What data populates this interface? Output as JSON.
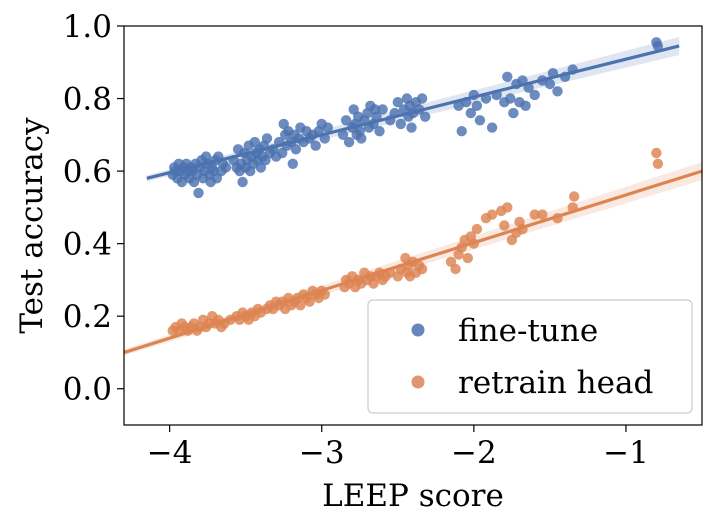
{
  "chart_data": {
    "type": "scatter",
    "xlabel": "LEEP score",
    "ylabel": "Test accuracy",
    "xlim": [
      -4.3,
      -0.5
    ],
    "ylim": [
      -0.1,
      1.0
    ],
    "xticks": [
      -4,
      -3,
      -2,
      -1
    ],
    "xtick_labels": [
      "−4",
      "−3",
      "−2",
      "−1"
    ],
    "yticks": [
      0.0,
      0.2,
      0.4,
      0.6,
      0.8,
      1.0
    ],
    "ytick_labels": [
      "0.0",
      "0.2",
      "0.4",
      "0.6",
      "0.8",
      "1.0"
    ],
    "legend_position": "lower-right",
    "series": [
      {
        "name": "fine-tune",
        "color": "#4c72b0",
        "regression": {
          "x_start": -4.15,
          "x_end": -0.65,
          "y_start": 0.58,
          "y_end": 0.945
        },
        "points": [
          [
            -3.98,
            0.59
          ],
          [
            -3.97,
            0.61
          ],
          [
            -3.96,
            0.6
          ],
          [
            -3.95,
            0.58
          ],
          [
            -3.94,
            0.62
          ],
          [
            -3.93,
            0.6
          ],
          [
            -3.92,
            0.57
          ],
          [
            -3.91,
            0.61
          ],
          [
            -3.9,
            0.59
          ],
          [
            -3.89,
            0.62
          ],
          [
            -3.88,
            0.6
          ],
          [
            -3.87,
            0.58
          ],
          [
            -3.86,
            0.61
          ],
          [
            -3.85,
            0.6
          ],
          [
            -3.84,
            0.57
          ],
          [
            -3.83,
            0.62
          ],
          [
            -3.82,
            0.59
          ],
          [
            -3.81,
            0.54
          ],
          [
            -3.8,
            0.61
          ],
          [
            -3.79,
            0.63
          ],
          [
            -3.78,
            0.58
          ],
          [
            -3.77,
            0.6
          ],
          [
            -3.76,
            0.64
          ],
          [
            -3.75,
            0.62
          ],
          [
            -3.74,
            0.59
          ],
          [
            -3.73,
            0.57
          ],
          [
            -3.72,
            0.61
          ],
          [
            -3.71,
            0.6
          ],
          [
            -3.7,
            0.63
          ],
          [
            -3.69,
            0.58
          ],
          [
            -3.68,
            0.64
          ],
          [
            -3.66,
            0.6
          ],
          [
            -3.65,
            0.62
          ],
          [
            -3.63,
            0.61
          ],
          [
            -3.58,
            0.63
          ],
          [
            -3.56,
            0.61
          ],
          [
            -3.55,
            0.66
          ],
          [
            -3.54,
            0.6
          ],
          [
            -3.53,
            0.62
          ],
          [
            -3.52,
            0.57
          ],
          [
            -3.51,
            0.65
          ],
          [
            -3.5,
            0.61
          ],
          [
            -3.49,
            0.63
          ],
          [
            -3.48,
            0.67
          ],
          [
            -3.47,
            0.6
          ],
          [
            -3.46,
            0.64
          ],
          [
            -3.45,
            0.62
          ],
          [
            -3.44,
            0.68
          ],
          [
            -3.43,
            0.65
          ],
          [
            -3.42,
            0.63
          ],
          [
            -3.41,
            0.66
          ],
          [
            -3.4,
            0.61
          ],
          [
            -3.39,
            0.64
          ],
          [
            -3.38,
            0.67
          ],
          [
            -3.37,
            0.63
          ],
          [
            -3.36,
            0.69
          ],
          [
            -3.34,
            0.65
          ],
          [
            -3.32,
            0.66
          ],
          [
            -3.3,
            0.64
          ],
          [
            -3.28,
            0.68
          ],
          [
            -3.26,
            0.65
          ],
          [
            -3.25,
            0.73
          ],
          [
            -3.24,
            0.7
          ],
          [
            -3.23,
            0.67
          ],
          [
            -3.22,
            0.71
          ],
          [
            -3.2,
            0.68
          ],
          [
            -3.19,
            0.62
          ],
          [
            -3.18,
            0.7
          ],
          [
            -3.17,
            0.66
          ],
          [
            -3.15,
            0.69
          ],
          [
            -3.14,
            0.72
          ],
          [
            -3.12,
            0.68
          ],
          [
            -3.1,
            0.71
          ],
          [
            -3.08,
            0.69
          ],
          [
            -3.06,
            0.7
          ],
          [
            -3.04,
            0.67
          ],
          [
            -3.02,
            0.71
          ],
          [
            -3.0,
            0.73
          ],
          [
            -2.98,
            0.69
          ],
          [
            -2.96,
            0.72
          ],
          [
            -2.86,
            0.7
          ],
          [
            -2.84,
            0.74
          ],
          [
            -2.82,
            0.68
          ],
          [
            -2.8,
            0.72
          ],
          [
            -2.79,
            0.77
          ],
          [
            -2.78,
            0.73
          ],
          [
            -2.77,
            0.7
          ],
          [
            -2.76,
            0.75
          ],
          [
            -2.75,
            0.71
          ],
          [
            -2.74,
            0.69
          ],
          [
            -2.72,
            0.74
          ],
          [
            -2.7,
            0.76
          ],
          [
            -2.69,
            0.72
          ],
          [
            -2.68,
            0.78
          ],
          [
            -2.66,
            0.73
          ],
          [
            -2.65,
            0.77
          ],
          [
            -2.64,
            0.75
          ],
          [
            -2.62,
            0.71
          ],
          [
            -2.6,
            0.77
          ],
          [
            -2.55,
            0.74
          ],
          [
            -2.52,
            0.76
          ],
          [
            -2.5,
            0.79
          ],
          [
            -2.48,
            0.73
          ],
          [
            -2.46,
            0.77
          ],
          [
            -2.44,
            0.8
          ],
          [
            -2.43,
            0.75
          ],
          [
            -2.42,
            0.78
          ],
          [
            -2.41,
            0.72
          ],
          [
            -2.4,
            0.76
          ],
          [
            -2.38,
            0.79
          ],
          [
            -2.36,
            0.77
          ],
          [
            -2.34,
            0.8
          ],
          [
            -2.32,
            0.75
          ],
          [
            -2.1,
            0.78
          ],
          [
            -2.08,
            0.71
          ],
          [
            -2.05,
            0.79
          ],
          [
            -2.02,
            0.76
          ],
          [
            -2.0,
            0.81
          ],
          [
            -1.98,
            0.78
          ],
          [
            -1.96,
            0.74
          ],
          [
            -1.92,
            0.8
          ],
          [
            -1.88,
            0.72
          ],
          [
            -1.85,
            0.81
          ],
          [
            -1.8,
            0.79
          ],
          [
            -1.78,
            0.86
          ],
          [
            -1.76,
            0.8
          ],
          [
            -1.74,
            0.76
          ],
          [
            -1.72,
            0.84
          ],
          [
            -1.7,
            0.79
          ],
          [
            -1.68,
            0.85
          ],
          [
            -1.66,
            0.78
          ],
          [
            -1.64,
            0.83
          ],
          [
            -1.6,
            0.81
          ],
          [
            -1.55,
            0.85
          ],
          [
            -1.5,
            0.84
          ],
          [
            -1.48,
            0.87
          ],
          [
            -1.45,
            0.82
          ],
          [
            -1.4,
            0.86
          ],
          [
            -1.35,
            0.88
          ],
          [
            -0.8,
            0.955
          ],
          [
            -0.79,
            0.945
          ]
        ]
      },
      {
        "name": "retrain head",
        "color": "#dd8452",
        "regression": {
          "x_start": -4.3,
          "x_end": -0.5,
          "y_start": 0.1,
          "y_end": 0.6
        },
        "points": [
          [
            -3.98,
            0.16
          ],
          [
            -3.96,
            0.17
          ],
          [
            -3.94,
            0.16
          ],
          [
            -3.92,
            0.18
          ],
          [
            -3.9,
            0.17
          ],
          [
            -3.88,
            0.16
          ],
          [
            -3.86,
            0.17
          ],
          [
            -3.84,
            0.18
          ],
          [
            -3.82,
            0.16
          ],
          [
            -3.8,
            0.17
          ],
          [
            -3.78,
            0.19
          ],
          [
            -3.76,
            0.17
          ],
          [
            -3.74,
            0.18
          ],
          [
            -3.72,
            0.2
          ],
          [
            -3.7,
            0.18
          ],
          [
            -3.68,
            0.19
          ],
          [
            -3.66,
            0.17
          ],
          [
            -3.64,
            0.18
          ],
          [
            -3.6,
            0.19
          ],
          [
            -3.56,
            0.2
          ],
          [
            -3.54,
            0.19
          ],
          [
            -3.52,
            0.21
          ],
          [
            -3.5,
            0.2
          ],
          [
            -3.48,
            0.19
          ],
          [
            -3.46,
            0.21
          ],
          [
            -3.44,
            0.2
          ],
          [
            -3.42,
            0.22
          ],
          [
            -3.4,
            0.21
          ],
          [
            -3.36,
            0.22
          ],
          [
            -3.34,
            0.23
          ],
          [
            -3.32,
            0.22
          ],
          [
            -3.3,
            0.24
          ],
          [
            -3.28,
            0.23
          ],
          [
            -3.26,
            0.24
          ],
          [
            -3.24,
            0.22
          ],
          [
            -3.22,
            0.25
          ],
          [
            -3.2,
            0.23
          ],
          [
            -3.18,
            0.24
          ],
          [
            -3.16,
            0.25
          ],
          [
            -3.14,
            0.23
          ],
          [
            -3.12,
            0.26
          ],
          [
            -3.1,
            0.25
          ],
          [
            -3.08,
            0.24
          ],
          [
            -3.06,
            0.27
          ],
          [
            -3.04,
            0.26
          ],
          [
            -3.02,
            0.25
          ],
          [
            -3.0,
            0.27
          ],
          [
            -2.98,
            0.26
          ],
          [
            -2.85,
            0.28
          ],
          [
            -2.84,
            0.3
          ],
          [
            -2.82,
            0.29
          ],
          [
            -2.8,
            0.31
          ],
          [
            -2.78,
            0.28
          ],
          [
            -2.76,
            0.3
          ],
          [
            -2.74,
            0.29
          ],
          [
            -2.72,
            0.32
          ],
          [
            -2.7,
            0.3
          ],
          [
            -2.68,
            0.31
          ],
          [
            -2.66,
            0.29
          ],
          [
            -2.64,
            0.31
          ],
          [
            -2.62,
            0.32
          ],
          [
            -2.6,
            0.3
          ],
          [
            -2.58,
            0.31
          ],
          [
            -2.55,
            0.32
          ],
          [
            -2.5,
            0.31
          ],
          [
            -2.48,
            0.33
          ],
          [
            -2.45,
            0.36
          ],
          [
            -2.44,
            0.32
          ],
          [
            -2.43,
            0.34
          ],
          [
            -2.42,
            0.31
          ],
          [
            -2.4,
            0.35
          ],
          [
            -2.38,
            0.32
          ],
          [
            -2.36,
            0.34
          ],
          [
            -2.34,
            0.33
          ],
          [
            -2.15,
            0.35
          ],
          [
            -2.12,
            0.33
          ],
          [
            -2.1,
            0.37
          ],
          [
            -2.08,
            0.39
          ],
          [
            -2.06,
            0.41
          ],
          [
            -2.04,
            0.36
          ],
          [
            -2.02,
            0.42
          ],
          [
            -2.0,
            0.4
          ],
          [
            -1.98,
            0.44
          ],
          [
            -1.92,
            0.47
          ],
          [
            -1.88,
            0.48
          ],
          [
            -1.82,
            0.49
          ],
          [
            -1.8,
            0.45
          ],
          [
            -1.78,
            0.5
          ],
          [
            -1.75,
            0.41
          ],
          [
            -1.72,
            0.43
          ],
          [
            -1.7,
            0.46
          ],
          [
            -1.68,
            0.44
          ],
          [
            -1.6,
            0.48
          ],
          [
            -1.55,
            0.48
          ],
          [
            -1.45,
            0.47
          ],
          [
            -1.35,
            0.5
          ],
          [
            -1.34,
            0.53
          ],
          [
            -0.8,
            0.65
          ],
          [
            -0.79,
            0.62
          ]
        ]
      }
    ]
  }
}
